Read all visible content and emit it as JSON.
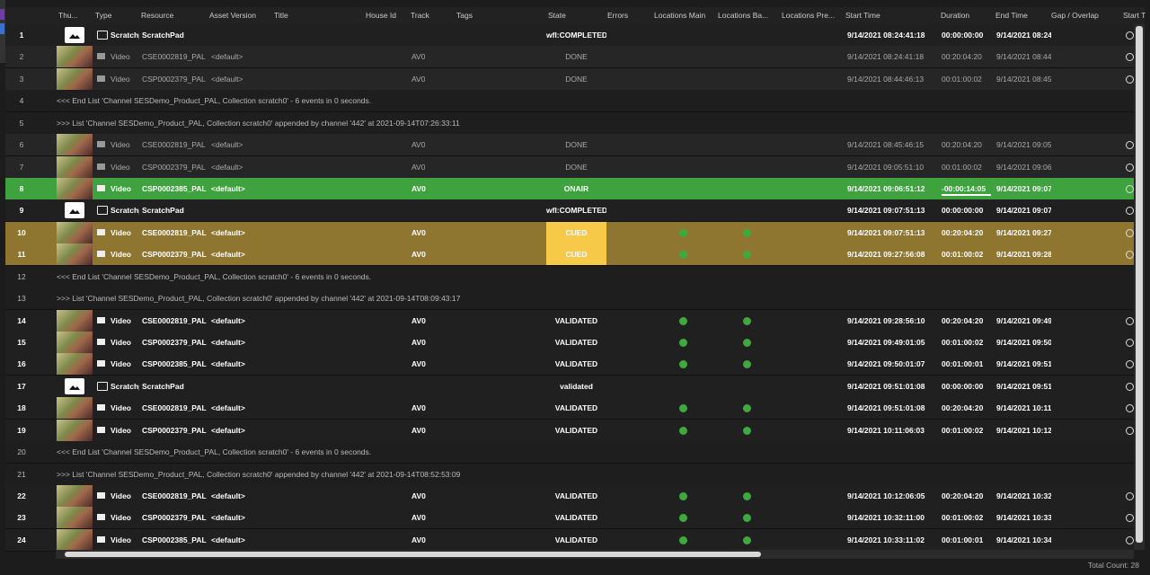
{
  "header": {
    "columns": [
      "Thu...",
      "Type",
      "Resource",
      "Asset Version",
      "Title",
      "House Id",
      "Track",
      "Tags",
      "State",
      "Errors",
      "Locations Main",
      "Locations Ba...",
      "Locations Pre...",
      "Start Time",
      "Duration",
      "End Time",
      "Gap / Overlap",
      "Start T"
    ]
  },
  "rows": [
    {
      "n": "1",
      "kind": "scratch",
      "style": "bold",
      "type": "Scratchp",
      "resource": "ScratchPad",
      "state": "wfl:COMPLETED",
      "start": "9/14/2021 08:24:41:18",
      "duration": "00:00:00:00",
      "end": "9/14/2021 08:24",
      "locations": false
    },
    {
      "n": "2",
      "kind": "video",
      "style": "dim",
      "type": "Video",
      "resource": "CSE0002819_PAL",
      "version": "<default>",
      "track": "AV0",
      "state": "DONE",
      "start": "9/14/2021 08:24:41:18",
      "duration": "00:20:04:20",
      "end": "9/14/2021 08:44",
      "locations": false
    },
    {
      "n": "3",
      "kind": "video",
      "style": "dim",
      "type": "Video",
      "resource": "CSP0002379_PAL",
      "version": "<default>",
      "track": "AV0",
      "state": "DONE",
      "start": "9/14/2021 08:44:46:13",
      "duration": "00:01:00:02",
      "end": "9/14/2021 08:45",
      "locations": false
    },
    {
      "n": "4",
      "kind": "msg",
      "text": "<<< End List 'Channel SESDemo_Product_PAL, Collection scratch0' - 6 events in 0 seconds."
    },
    {
      "n": "5",
      "kind": "msg",
      "text": ">>> List 'Channel SESDemo_Product_PAL, Collection scratch0' appended by channel '442' at 2021-09-14T07:26:33:11"
    },
    {
      "n": "6",
      "kind": "video",
      "style": "dim",
      "type": "Video",
      "resource": "CSE0002819_PAL",
      "version": "<default>",
      "track": "AV0",
      "state": "DONE",
      "start": "9/14/2021 08:45:46:15",
      "duration": "00:20:04:20",
      "end": "9/14/2021 09:05",
      "locations": false
    },
    {
      "n": "7",
      "kind": "video",
      "style": "dim",
      "type": "Video",
      "resource": "CSP0002379_PAL",
      "version": "<default>",
      "track": "AV0",
      "state": "DONE",
      "start": "9/14/2021 09:05:51:10",
      "duration": "00:01:00:02",
      "end": "9/14/2021 09:06",
      "locations": false
    },
    {
      "n": "8",
      "kind": "video",
      "style": "onair",
      "type": "Video",
      "resource": "CSP0002385_PAL",
      "version": "<default>",
      "track": "AV0",
      "state": "ONAIR",
      "start": "9/14/2021 09:06:51:12",
      "duration": "-00:00:14:05",
      "end": "9/14/2021 09:07",
      "locations": false
    },
    {
      "n": "9",
      "kind": "scratch",
      "style": "bold",
      "type": "Scratchp",
      "resource": "ScratchPad",
      "state": "wfl:COMPLETED",
      "start": "9/14/2021 09:07:51:13",
      "duration": "00:00:00:00",
      "end": "9/14/2021 09:07",
      "locations": false
    },
    {
      "n": "10",
      "kind": "video",
      "style": "cued",
      "type": "Video",
      "resource": "CSE0002819_PAL",
      "version": "<default>",
      "track": "AV0",
      "state": "CUED",
      "start": "9/14/2021 09:07:51:13",
      "duration": "00:20:04:20",
      "end": "9/14/2021 09:27",
      "locations": true
    },
    {
      "n": "11",
      "kind": "video",
      "style": "cued",
      "type": "Video",
      "resource": "CSP0002379_PAL",
      "version": "<default>",
      "track": "AV0",
      "state": "CUED",
      "start": "9/14/2021 09:27:56:08",
      "duration": "00:01:00:02",
      "end": "9/14/2021 09:28",
      "locations": true
    },
    {
      "n": "12",
      "kind": "msg",
      "text": "<<< End List 'Channel SESDemo_Product_PAL, Collection scratch0' - 6 events in 0 seconds."
    },
    {
      "n": "13",
      "kind": "msg",
      "text": ">>> List 'Channel SESDemo_Product_PAL, Collection scratch0' appended by channel '442' at 2021-09-14T08:09:43:17"
    },
    {
      "n": "14",
      "kind": "video",
      "style": "bold",
      "type": "Video",
      "resource": "CSE0002819_PAL",
      "version": "<default>",
      "track": "AV0",
      "state": "VALIDATED",
      "start": "9/14/2021 09:28:56:10",
      "duration": "00:20:04:20",
      "end": "9/14/2021 09:49",
      "locations": true
    },
    {
      "n": "15",
      "kind": "video",
      "style": "bold",
      "type": "Video",
      "resource": "CSP0002379_PAL",
      "version": "<default>",
      "track": "AV0",
      "state": "VALIDATED",
      "start": "9/14/2021 09:49:01:05",
      "duration": "00:01:00:02",
      "end": "9/14/2021 09:50",
      "locations": true
    },
    {
      "n": "16",
      "kind": "video",
      "style": "bold",
      "type": "Video",
      "resource": "CSP0002385_PAL",
      "version": "<default>",
      "track": "AV0",
      "state": "VALIDATED",
      "start": "9/14/2021 09:50:01:07",
      "duration": "00:01:00:01",
      "end": "9/14/2021 09:51",
      "locations": true
    },
    {
      "n": "17",
      "kind": "scratch",
      "style": "bold",
      "type": "Scratchp",
      "resource": "ScratchPad",
      "state": "validated",
      "start": "9/14/2021 09:51:01:08",
      "duration": "00:00:00:00",
      "end": "9/14/2021 09:51",
      "locations": false
    },
    {
      "n": "18",
      "kind": "video",
      "style": "bold",
      "type": "Video",
      "resource": "CSE0002819_PAL",
      "version": "<default>",
      "track": "AV0",
      "state": "VALIDATED",
      "start": "9/14/2021 09:51:01:08",
      "duration": "00:20:04:20",
      "end": "9/14/2021 10:11",
      "locations": true
    },
    {
      "n": "19",
      "kind": "video",
      "style": "bold",
      "type": "Video",
      "resource": "CSP0002379_PAL",
      "version": "<default>",
      "track": "AV0",
      "state": "VALIDATED",
      "start": "9/14/2021 10:11:06:03",
      "duration": "00:01:00:02",
      "end": "9/14/2021 10:12",
      "locations": true
    },
    {
      "n": "20",
      "kind": "msg",
      "text": "<<< End List 'Channel SESDemo_Product_PAL, Collection scratch0' - 6 events in 0 seconds."
    },
    {
      "n": "21",
      "kind": "msg",
      "text": ">>> List 'Channel SESDemo_Product_PAL, Collection scratch0' appended by channel '442' at 2021-09-14T08:52:53:09"
    },
    {
      "n": "22",
      "kind": "video",
      "style": "bold",
      "type": "Video",
      "resource": "CSE0002819_PAL",
      "version": "<default>",
      "track": "AV0",
      "state": "VALIDATED",
      "start": "9/14/2021 10:12:06:05",
      "duration": "00:20:04:20",
      "end": "9/14/2021 10:32",
      "locations": true
    },
    {
      "n": "23",
      "kind": "video",
      "style": "bold",
      "type": "Video",
      "resource": "CSP0002379_PAL",
      "version": "<default>",
      "track": "AV0",
      "state": "VALIDATED",
      "start": "9/14/2021 10:32:11:00",
      "duration": "00:01:00:02",
      "end": "9/14/2021 10:33",
      "locations": true
    },
    {
      "n": "24",
      "kind": "video",
      "style": "bold",
      "type": "Video",
      "resource": "CSP0002385_PAL",
      "version": "<default>",
      "track": "AV0",
      "state": "VALIDATED",
      "start": "9/14/2021 10:33:11:02",
      "duration": "00:01:00:01",
      "end": "9/14/2021 10:34",
      "locations": true
    }
  ],
  "footer": {
    "total": "Total Count: 28"
  }
}
